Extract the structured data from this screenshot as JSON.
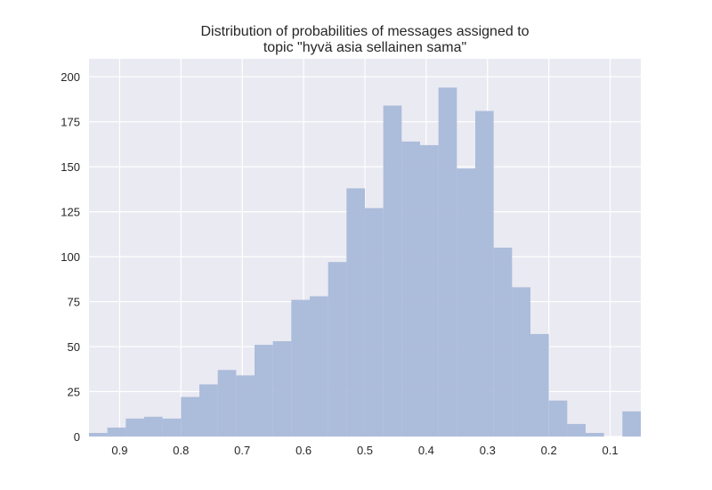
{
  "chart_data": {
    "type": "bar",
    "title_lines": [
      "Distribution of probabilities of messages assigned to",
      "topic \"hyvä asia sellainen sama\""
    ],
    "xlabel": "",
    "ylabel": "",
    "x_axis_inverted": true,
    "xlim": [
      0.95,
      0.05
    ],
    "ylim": [
      0,
      210
    ],
    "x_ticks": [
      0.9,
      0.8,
      0.7,
      0.6,
      0.5,
      0.4,
      0.3,
      0.2,
      0.1
    ],
    "x_tick_labels": [
      "0.9",
      "0.8",
      "0.7",
      "0.6",
      "0.5",
      "0.4",
      "0.3",
      "0.2",
      "0.1"
    ],
    "y_ticks": [
      0,
      25,
      50,
      75,
      100,
      125,
      150,
      175,
      200
    ],
    "y_tick_labels": [
      "0",
      "25",
      "50",
      "75",
      "100",
      "125",
      "150",
      "175",
      "200"
    ],
    "grid": true,
    "colors": {
      "bar": "#a9b9d9",
      "background": "#eaeaf2",
      "grid": "#ffffff",
      "text": "#262626"
    },
    "bin_width": 0.03,
    "bin_right_edges": [
      0.95,
      0.92,
      0.89,
      0.86,
      0.83,
      0.8,
      0.77,
      0.74,
      0.71,
      0.68,
      0.65,
      0.62,
      0.59,
      0.56,
      0.53,
      0.5,
      0.47,
      0.44,
      0.41,
      0.38,
      0.35,
      0.32,
      0.29,
      0.26,
      0.23,
      0.2,
      0.17,
      0.14,
      0.11,
      0.08
    ],
    "values": [
      2,
      5,
      10,
      11,
      10,
      22,
      29,
      37,
      34,
      51,
      53,
      76,
      78,
      97,
      138,
      127,
      184,
      164,
      162,
      194,
      149,
      181,
      105,
      83,
      57,
      20,
      7,
      2,
      0,
      14
    ]
  }
}
